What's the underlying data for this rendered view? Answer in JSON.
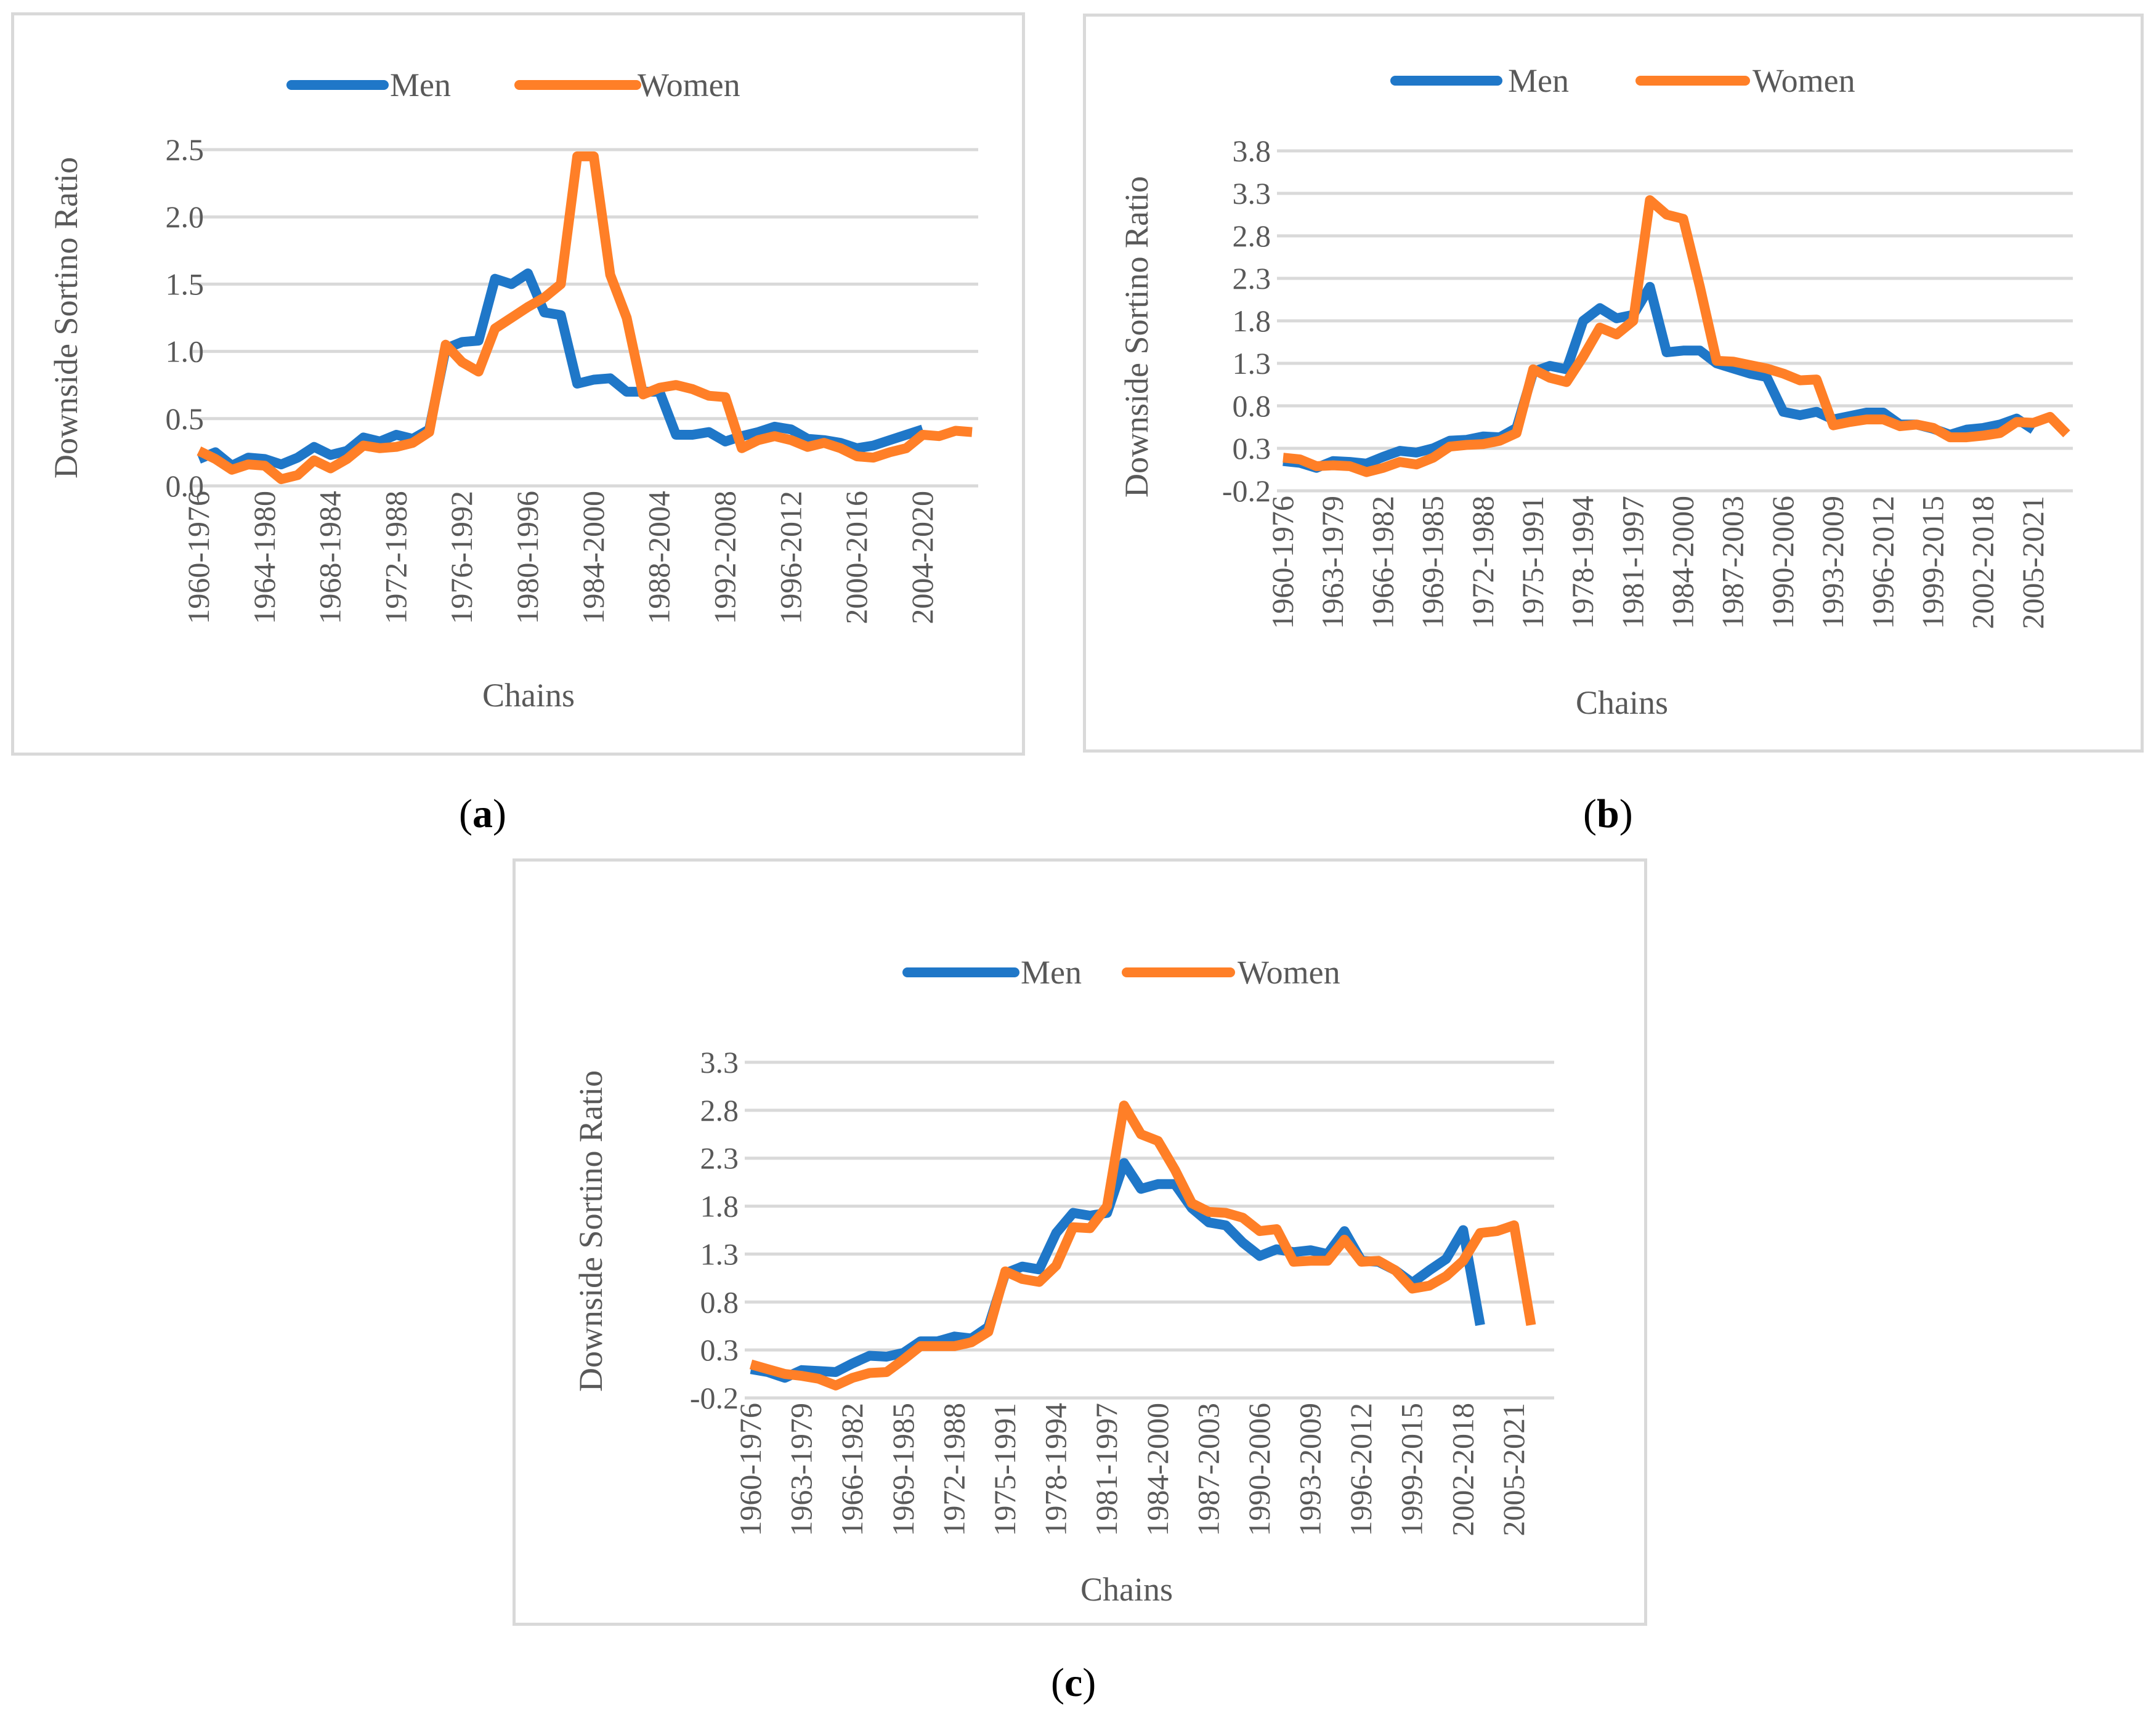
{
  "colors": {
    "men": "#1f77c8",
    "women": "#ff7f27",
    "grid": "#d9d9d9",
    "text": "#595959"
  },
  "captions": [
    {
      "open": "(",
      "letter": "a",
      "close": ")"
    },
    {
      "open": "(",
      "letter": "b",
      "close": ")"
    },
    {
      "open": "(",
      "letter": "c",
      "close": ")"
    }
  ],
  "chart_data": [
    {
      "type": "line",
      "title": "",
      "xlabel": "Chains",
      "ylabel": "Downside Sortino Ratio",
      "ylim": [
        0,
        2.5
      ],
      "yticks": [
        "0.0",
        "0.5",
        "1.0",
        "1.5",
        "2.0",
        "2.5"
      ],
      "x_tick_labels": [
        "1960-1976",
        "1964-1980",
        "1968-1984",
        "1972-1988",
        "1976-1992",
        "1980-1996",
        "1984-2000",
        "1988-2004",
        "1992-2008",
        "1996-2012",
        "2000-2016",
        "2004-2020"
      ],
      "legend": [
        "Men",
        "Women"
      ],
      "legend_position": "top",
      "series": [
        {
          "name": "Men",
          "values": [
            0.2,
            0.25,
            0.15,
            0.21,
            0.2,
            0.16,
            0.21,
            0.29,
            0.23,
            0.26,
            0.36,
            0.33,
            0.38,
            0.35,
            0.42,
            1.02,
            1.07,
            1.08,
            1.54,
            1.5,
            1.58,
            1.29,
            1.27,
            0.76,
            0.79,
            0.8,
            0.7,
            0.7,
            0.7,
            0.38,
            0.38,
            0.4,
            0.33,
            0.37,
            0.4,
            0.44,
            0.42,
            0.35,
            0.34,
            0.32,
            0.28,
            0.3,
            0.34,
            0.38,
            0.42
          ]
        },
        {
          "name": "Women",
          "values": [
            0.26,
            0.2,
            0.12,
            0.16,
            0.15,
            0.05,
            0.08,
            0.19,
            0.13,
            0.2,
            0.3,
            0.28,
            0.29,
            0.32,
            0.4,
            1.05,
            0.92,
            0.85,
            1.17,
            1.25,
            1.33,
            1.4,
            1.5,
            2.45,
            2.45,
            1.57,
            1.25,
            0.68,
            0.73,
            0.75,
            0.72,
            0.67,
            0.66,
            0.28,
            0.34,
            0.37,
            0.34,
            0.29,
            0.32,
            0.28,
            0.22,
            0.21,
            0.25,
            0.28,
            0.38,
            0.37,
            0.41,
            0.4
          ]
        }
      ]
    },
    {
      "type": "line",
      "title": "",
      "xlabel": "Chains",
      "ylabel": "Downside Sortino Ratio",
      "ylim": [
        -0.2,
        3.8
      ],
      "yticks": [
        "-0.2",
        "0.3",
        "0.8",
        "1.3",
        "1.8",
        "2.3",
        "2.8",
        "3.3",
        "3.8"
      ],
      "x_tick_labels": [
        "1960-1976",
        "1963-1979",
        "1966-1982",
        "1969-1985",
        "1972-1988",
        "1975-1991",
        "1978-1994",
        "1981-1997",
        "1984-2000",
        "1987-2003",
        "1990-2006",
        "1993-2009",
        "1996-2012",
        "1999-2015",
        "2002-2018",
        "2005-2021"
      ],
      "legend": [
        "Men",
        "Women"
      ],
      "legend_position": "top",
      "series": [
        {
          "name": "Men",
          "values": [
            0.15,
            0.13,
            0.07,
            0.15,
            0.14,
            0.12,
            0.2,
            0.27,
            0.25,
            0.3,
            0.39,
            0.4,
            0.44,
            0.43,
            0.54,
            1.2,
            1.27,
            1.23,
            1.8,
            1.95,
            1.83,
            1.87,
            2.2,
            1.43,
            1.45,
            1.45,
            1.3,
            1.24,
            1.18,
            1.14,
            0.73,
            0.69,
            0.73,
            0.64,
            0.68,
            0.72,
            0.72,
            0.58,
            0.58,
            0.53,
            0.46,
            0.52,
            0.54,
            0.58,
            0.65,
            0.52
          ]
        },
        {
          "name": "Women",
          "values": [
            0.19,
            0.17,
            0.09,
            0.1,
            0.09,
            0.02,
            0.07,
            0.14,
            0.11,
            0.19,
            0.32,
            0.34,
            0.35,
            0.39,
            0.48,
            1.23,
            1.13,
            1.08,
            1.38,
            1.72,
            1.64,
            1.8,
            3.22,
            3.05,
            3.0,
            2.2,
            1.33,
            1.32,
            1.28,
            1.24,
            1.18,
            1.1,
            1.11,
            0.57,
            0.61,
            0.64,
            0.64,
            0.56,
            0.58,
            0.54,
            0.43,
            0.43,
            0.45,
            0.48,
            0.61,
            0.6,
            0.67,
            0.47
          ]
        }
      ]
    },
    {
      "type": "line",
      "title": "",
      "xlabel": "Chains",
      "ylabel": "Downside Sortino Ratio",
      "ylim": [
        -0.2,
        3.3
      ],
      "yticks": [
        "-0.2",
        "0.3",
        "0.8",
        "1.3",
        "1.8",
        "2.3",
        "2.8",
        "3.3"
      ],
      "x_tick_labels": [
        "1960-1976",
        "1963-1979",
        "1966-1982",
        "1969-1985",
        "1972-1988",
        "1975-1991",
        "1978-1994",
        "1981-1997",
        "1984-2000",
        "1987-2003",
        "1990-2006",
        "1993-2009",
        "1996-2012",
        "1999-2015",
        "2002-2018",
        "2005-2021"
      ],
      "legend": [
        "Men",
        "Women"
      ],
      "legend_position": "top",
      "series": [
        {
          "name": "Men",
          "values": [
            0.1,
            0.07,
            0.01,
            0.09,
            0.08,
            0.07,
            0.16,
            0.24,
            0.23,
            0.27,
            0.39,
            0.39,
            0.44,
            0.42,
            0.54,
            1.1,
            1.17,
            1.14,
            1.52,
            1.73,
            1.7,
            1.73,
            2.25,
            1.98,
            2.03,
            2.03,
            1.78,
            1.63,
            1.6,
            1.42,
            1.28,
            1.35,
            1.32,
            1.34,
            1.3,
            1.54,
            1.23,
            1.22,
            1.13,
            1.0,
            1.13,
            1.25,
            1.55,
            0.56
          ]
        },
        {
          "name": "Women",
          "values": [
            0.15,
            0.1,
            0.05,
            0.03,
            0.0,
            -0.07,
            0.01,
            0.06,
            0.07,
            0.2,
            0.34,
            0.34,
            0.34,
            0.38,
            0.49,
            1.12,
            1.04,
            1.01,
            1.18,
            1.58,
            1.57,
            1.8,
            2.85,
            2.55,
            2.48,
            2.18,
            1.83,
            1.74,
            1.73,
            1.68,
            1.54,
            1.56,
            1.22,
            1.23,
            1.23,
            1.45,
            1.22,
            1.23,
            1.13,
            0.94,
            0.97,
            1.07,
            1.23,
            1.52,
            1.54,
            1.6,
            0.56
          ]
        }
      ]
    }
  ]
}
